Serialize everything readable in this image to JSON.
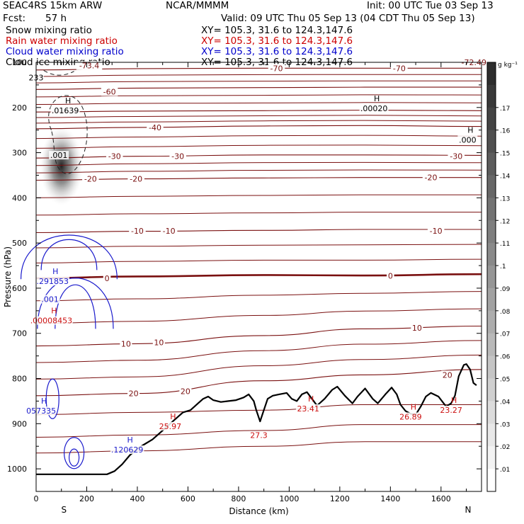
{
  "header": {
    "model": "SEAC4RS 15km ARW",
    "fcst_label": "Fcst:",
    "fcst_value": "57 h",
    "center": "NCAR/MMMM",
    "init": "Init: 00 UTC Tue 03 Sep 13",
    "valid": "Valid: 09 UTC Thu 05 Sep 13 (04 CDT Thu 05 Sep 13)"
  },
  "fields": [
    {
      "name": "Snow mixing ratio",
      "xy": "XY= 105.3, 31.6 to 124.3,147.6",
      "color": "#000000"
    },
    {
      "name": "Rain water mixing ratio",
      "xy": "XY= 105.3, 31.6 to 124.3,147.6",
      "color": "#cc0000"
    },
    {
      "name": "Cloud water mixing ratio",
      "xy": "XY= 105.3, 31.6 to 124.3,147.6",
      "color": "#0000cc"
    },
    {
      "name": "Cloud ice mixing ratio",
      "xy": "XY= 105.3, 31.6 to 124.3,147.6",
      "color": "#000000"
    }
  ],
  "colors": {
    "temperature": "#7a1010",
    "cloud_water": "#1a1acc",
    "rain": "#cc1010",
    "terrain": "#000000"
  },
  "chart_data": {
    "type": "cross-section",
    "xlabel": "Distance (km)",
    "ylabel": "Pressure (hPa)",
    "xlim": [
      0,
      1760
    ],
    "ylim": [
      1050,
      100
    ],
    "x_ticks": [
      "0",
      "200",
      "400",
      "600",
      "800",
      "1000",
      "1200",
      "1400",
      "1600"
    ],
    "y_ticks": [
      "100",
      "200",
      "300",
      "400",
      "500",
      "600",
      "700",
      "800",
      "900",
      "1000"
    ],
    "end_labels": {
      "left": "S",
      "right": "N"
    },
    "colorbar": {
      "unit": "g kg⁻¹",
      "ticks": [
        ".01",
        ".02",
        ".03",
        ".04",
        ".05",
        ".06",
        ".07",
        ".08",
        ".09",
        ".1",
        ".11",
        ".12",
        ".13",
        ".14",
        ".15",
        ".16",
        ".17"
      ]
    },
    "temperature_labels": [
      {
        "x": 210,
        "p": 107,
        "t": "-73.4"
      },
      {
        "x": 950,
        "p": 113,
        "t": "-70"
      },
      {
        "x": 1435,
        "p": 113,
        "t": "-70"
      },
      {
        "x": 1730,
        "p": 100,
        "t": "-72.49"
      },
      {
        "x": 290,
        "p": 165,
        "t": "-60"
      },
      {
        "x": 470,
        "p": 244,
        "t": "-40"
      },
      {
        "x": 310,
        "p": 308,
        "t": "-30"
      },
      {
        "x": 560,
        "p": 308,
        "t": "-30"
      },
      {
        "x": 1660,
        "p": 308,
        "t": "-30"
      },
      {
        "x": 215,
        "p": 358,
        "t": "-20"
      },
      {
        "x": 395,
        "p": 358,
        "t": "-20"
      },
      {
        "x": 1560,
        "p": 355,
        "t": "-20"
      },
      {
        "x": 400,
        "p": 473,
        "t": "-10"
      },
      {
        "x": 525,
        "p": 473,
        "t": "-10"
      },
      {
        "x": 1580,
        "p": 473,
        "t": "-10"
      },
      {
        "x": 280,
        "p": 578,
        "t": "0"
      },
      {
        "x": 1400,
        "p": 573,
        "t": "0"
      },
      {
        "x": 355,
        "p": 723,
        "t": "10"
      },
      {
        "x": 485,
        "p": 720,
        "t": "10"
      },
      {
        "x": 1505,
        "p": 688,
        "t": "10"
      },
      {
        "x": 385,
        "p": 833,
        "t": "20"
      },
      {
        "x": 590,
        "p": 828,
        "t": "20"
      },
      {
        "x": 1625,
        "p": 792,
        "t": "20"
      }
    ],
    "extrema": [
      {
        "x": 0,
        "p": 132,
        "t": "233",
        "sym": "",
        "color": "black"
      },
      {
        "x": 115,
        "p": 205,
        "t": ".01639",
        "sym": "H",
        "color": "black"
      },
      {
        "x": 90,
        "p": 304,
        "t": ".001",
        "sym": "",
        "color": "black"
      },
      {
        "x": 1335,
        "p": 200,
        "t": ".00020",
        "sym": "H",
        "color": "black"
      },
      {
        "x": 1705,
        "p": 270,
        "t": ".000",
        "sym": "H",
        "color": "black"
      },
      {
        "x": 65,
        "p": 583,
        "t": ".291853",
        "sym": "H",
        "color": "blue"
      },
      {
        "x": 55,
        "p": 623,
        "t": ".001",
        "sym": "",
        "color": "blue"
      },
      {
        "x": 60,
        "p": 670,
        "t": ".00008453",
        "sym": "H",
        "color": "red"
      },
      {
        "x": 20,
        "p": 870,
        "t": "057335",
        "sym": "H",
        "color": "blue"
      },
      {
        "x": 360,
        "p": 956,
        "t": ".120629",
        "sym": "H",
        "color": "blue"
      },
      {
        "x": 530,
        "p": 904,
        "t": "25.97",
        "sym": "H",
        "color": "red"
      },
      {
        "x": 880,
        "p": 924,
        "t": "27.3",
        "sym": "",
        "color": "red"
      },
      {
        "x": 1075,
        "p": 865,
        "t": "23.41",
        "sym": "H",
        "color": "red"
      },
      {
        "x": 1480,
        "p": 883,
        "t": "26.89",
        "sym": "H",
        "color": "red"
      },
      {
        "x": 1640,
        "p": 868,
        "t": "23.27",
        "sym": "H",
        "color": "red"
      }
    ],
    "terrain": [
      [
        0,
        1012
      ],
      [
        280,
        1012
      ],
      [
        310,
        1005
      ],
      [
        340,
        990
      ],
      [
        370,
        970
      ],
      [
        400,
        955
      ],
      [
        430,
        945
      ],
      [
        460,
        935
      ],
      [
        500,
        915
      ],
      [
        540,
        895
      ],
      [
        580,
        875
      ],
      [
        610,
        870
      ],
      [
        640,
        855
      ],
      [
        660,
        845
      ],
      [
        680,
        840
      ],
      [
        700,
        848
      ],
      [
        730,
        852
      ],
      [
        760,
        850
      ],
      [
        790,
        848
      ],
      [
        820,
        842
      ],
      [
        840,
        835
      ],
      [
        860,
        850
      ],
      [
        870,
        870
      ],
      [
        885,
        895
      ],
      [
        900,
        870
      ],
      [
        915,
        845
      ],
      [
        935,
        838
      ],
      [
        960,
        835
      ],
      [
        990,
        832
      ],
      [
        1010,
        845
      ],
      [
        1030,
        850
      ],
      [
        1050,
        835
      ],
      [
        1070,
        830
      ],
      [
        1090,
        845
      ],
      [
        1110,
        860
      ],
      [
        1140,
        845
      ],
      [
        1170,
        825
      ],
      [
        1190,
        818
      ],
      [
        1220,
        838
      ],
      [
        1250,
        855
      ],
      [
        1270,
        840
      ],
      [
        1300,
        822
      ],
      [
        1330,
        845
      ],
      [
        1350,
        855
      ],
      [
        1380,
        835
      ],
      [
        1405,
        820
      ],
      [
        1425,
        835
      ],
      [
        1440,
        858
      ],
      [
        1460,
        872
      ],
      [
        1480,
        878
      ],
      [
        1500,
        880
      ],
      [
        1520,
        862
      ],
      [
        1540,
        840
      ],
      [
        1560,
        832
      ],
      [
        1590,
        840
      ],
      [
        1620,
        862
      ],
      [
        1640,
        855
      ],
      [
        1655,
        838
      ],
      [
        1670,
        795
      ],
      [
        1690,
        770
      ],
      [
        1700,
        768
      ],
      [
        1715,
        780
      ],
      [
        1728,
        810
      ],
      [
        1740,
        815
      ]
    ],
    "temperature_levels": [
      {
        "t": "-70",
        "pts": [
          [
            0,
            117
          ],
          [
            400,
            114
          ],
          [
            900,
            113
          ],
          [
            1300,
            113
          ],
          [
            1760,
            113
          ]
        ]
      },
      {
        "t": "-60",
        "pts": [
          [
            0,
            160
          ],
          [
            400,
            157
          ],
          [
            900,
            156
          ],
          [
            1300,
            155
          ],
          [
            1760,
            155
          ]
        ]
      },
      {
        "t": "-50",
        "pts": [
          [
            0,
            210
          ],
          [
            400,
            208
          ],
          [
            900,
            207
          ],
          [
            1300,
            206
          ],
          [
            1760,
            207
          ]
        ]
      },
      {
        "t": "-40",
        "pts": [
          [
            0,
            247
          ],
          [
            400,
            244
          ],
          [
            900,
            241
          ],
          [
            1300,
            240
          ],
          [
            1760,
            242
          ]
        ]
      },
      {
        "t": "-30",
        "pts": [
          [
            0,
            312
          ],
          [
            400,
            308
          ],
          [
            900,
            305
          ],
          [
            1300,
            305
          ],
          [
            1760,
            306
          ]
        ]
      },
      {
        "t": "-20",
        "pts": [
          [
            0,
            361
          ],
          [
            400,
            358
          ],
          [
            900,
            356
          ],
          [
            1300,
            355
          ],
          [
            1760,
            355
          ]
        ]
      },
      {
        "t": "-10",
        "pts": [
          [
            0,
            477
          ],
          [
            400,
            474
          ],
          [
            900,
            472
          ],
          [
            1300,
            470
          ],
          [
            1760,
            470
          ]
        ]
      },
      {
        "t": "0",
        "pts": [
          [
            0,
            578
          ],
          [
            400,
            574
          ],
          [
            900,
            571
          ],
          [
            1300,
            572
          ],
          [
            1760,
            569
          ]
        ]
      },
      {
        "t": "10",
        "pts": [
          [
            0,
            728
          ],
          [
            400,
            723
          ],
          [
            900,
            705
          ],
          [
            1300,
            690
          ],
          [
            1760,
            684
          ]
        ]
      },
      {
        "t": "20",
        "pts": [
          [
            0,
            838
          ],
          [
            400,
            833
          ],
          [
            900,
            805
          ],
          [
            1300,
            792
          ],
          [
            1760,
            780
          ]
        ]
      }
    ]
  }
}
